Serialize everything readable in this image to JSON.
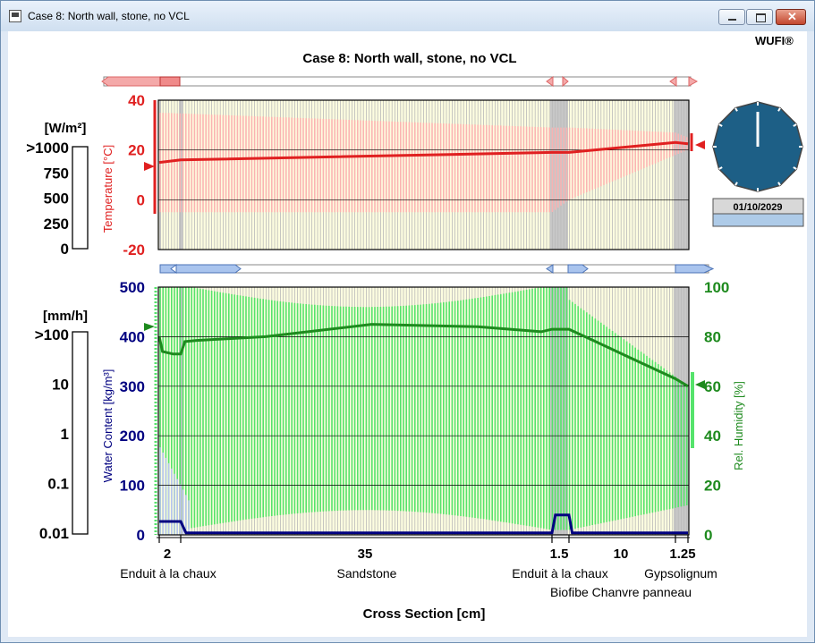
{
  "window": {
    "title": "Case 8: North wall, stone, no VCL",
    "brand": "WUFI®"
  },
  "chart_title": "Case 8: North wall, stone, no VCL",
  "colors": {
    "temperature": "#e02020",
    "temperature_band": "#ffb0b0",
    "rh": "#1e8a1e",
    "rh_band": "#55e36b",
    "water": "#000080",
    "water_band": "#b8c4f0",
    "bg_layer": "#fdfde0",
    "gauge": "#1d5f86"
  },
  "radiation_scale": {
    "unit": "[W/m²]",
    "ticks": [
      ">1000",
      "750",
      "500",
      "250",
      "0"
    ]
  },
  "rain_scale": {
    "unit": "[mm/h]",
    "ticks": [
      ">100",
      "10",
      "1",
      "0.1",
      "0.01"
    ]
  },
  "date": "01/10/2029",
  "cross_section": {
    "xlabel": "Cross Section [cm]",
    "thickness_labels": [
      "2",
      "35",
      "1.5",
      "10",
      "1.25"
    ],
    "layer_names_row1": [
      "Enduit à la chaux",
      "Sandstone",
      "Enduit à la chaux",
      "Gypsolignum"
    ],
    "layer_names_row2": [
      "Biofibe Chanvre panneau"
    ]
  },
  "chart_data": [
    {
      "type": "line",
      "ylabel": "Temperature [°C]",
      "ylim": [
        -20,
        40
      ],
      "yticks": [
        "40",
        "20",
        "0",
        "-20"
      ],
      "series": [
        {
          "name": "Temperature",
          "x": [
            0,
            2,
            37,
            38.5,
            48.5,
            49.75
          ],
          "y": [
            15,
            16,
            19,
            19,
            23,
            22.5
          ]
        }
      ],
      "band": {
        "x": [
          0,
          37,
          38.5,
          48.5,
          49.75
        ],
        "min": [
          -5,
          -5,
          0,
          18,
          20
        ],
        "max": [
          35,
          29,
          29,
          27,
          25
        ]
      }
    },
    {
      "type": "line",
      "ylabel_left": "Water Content [kg/m³]",
      "ylabel_right": "Rel. Humidity [%]",
      "ylim_left": [
        0,
        500
      ],
      "ylim_right": [
        0,
        100
      ],
      "yticks_left": [
        "500",
        "400",
        "300",
        "200",
        "100",
        "0"
      ],
      "yticks_right": [
        "100",
        "80",
        "60",
        "40",
        "20",
        "0"
      ],
      "series": [
        {
          "name": "Rel. Humidity",
          "x": [
            0,
            0.3,
            1.3,
            2,
            2.4,
            3.5,
            10,
            20,
            30,
            36,
            37,
            38.5,
            41,
            44,
            48.5,
            49.75
          ],
          "y": [
            80,
            74,
            73,
            73,
            78,
            78.5,
            80,
            85,
            84,
            82,
            83,
            83,
            78,
            72,
            63,
            60
          ]
        },
        {
          "name": "Water Content",
          "x": [
            0,
            2,
            2.5,
            37,
            37.3,
            38.5,
            38.8,
            49.75
          ],
          "y": [
            27,
            27,
            4,
            4,
            40,
            40,
            4,
            4
          ]
        }
      ]
    }
  ]
}
